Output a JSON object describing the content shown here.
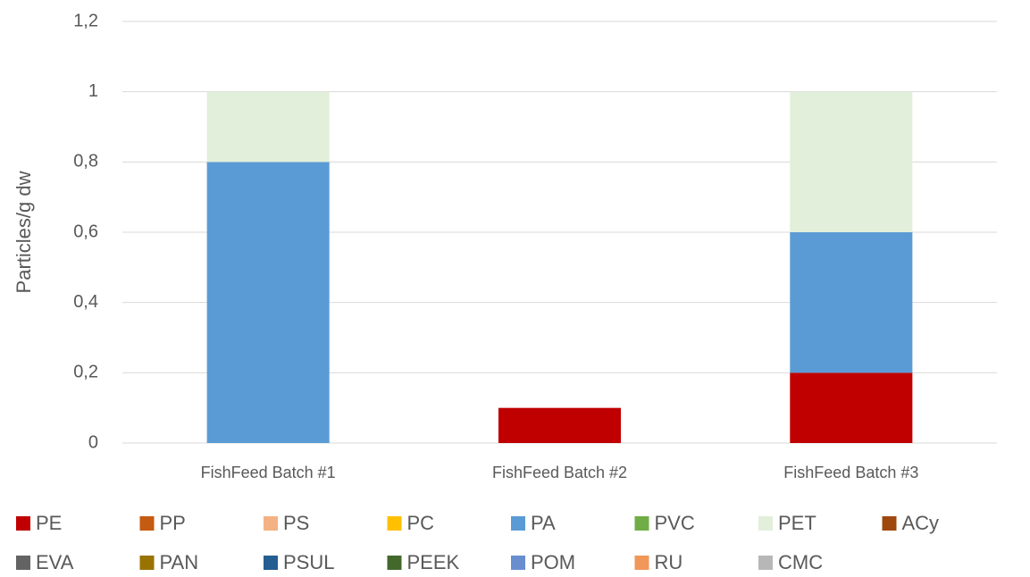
{
  "chart_data": {
    "type": "stacked_bar",
    "y_label": "Particles/g dw",
    "categories": [
      "FishFeed Batch #1",
      "FishFeed Batch #2",
      "FishFeed Batch #3"
    ],
    "series": [
      {
        "name": "PE",
        "color": "#c00000",
        "values": [
          0,
          0.1,
          0.2
        ]
      },
      {
        "name": "PP",
        "color": "#c55a11",
        "values": [
          0,
          0,
          0
        ]
      },
      {
        "name": "PS",
        "color": "#f4b183",
        "values": [
          0,
          0,
          0
        ]
      },
      {
        "name": "PC",
        "color": "#ffc000",
        "values": [
          0,
          0,
          0
        ]
      },
      {
        "name": "PA",
        "color": "#5b9bd5",
        "values": [
          0.8,
          0,
          0.4
        ]
      },
      {
        "name": "PVC",
        "color": "#70ad47",
        "values": [
          0,
          0,
          0
        ]
      },
      {
        "name": "PET",
        "color": "#e2efda",
        "values": [
          0.2,
          0,
          0.4
        ]
      },
      {
        "name": "ACy",
        "color": "#9e480e",
        "values": [
          0,
          0,
          0
        ]
      },
      {
        "name": "EVA",
        "color": "#636363",
        "values": [
          0,
          0,
          0
        ]
      },
      {
        "name": "PAN",
        "color": "#997300",
        "values": [
          0,
          0,
          0
        ]
      },
      {
        "name": "PSUL",
        "color": "#255e91",
        "values": [
          0,
          0,
          0
        ]
      },
      {
        "name": "PEEK",
        "color": "#43682b",
        "values": [
          0,
          0,
          0
        ]
      },
      {
        "name": "POM",
        "color": "#698ed0",
        "values": [
          0,
          0,
          0
        ]
      },
      {
        "name": "RU",
        "color": "#f1975a",
        "values": [
          0,
          0,
          0
        ]
      },
      {
        "name": "CMC",
        "color": "#b7b7b7",
        "values": [
          0,
          0,
          0
        ]
      }
    ],
    "ylim": [
      0,
      1.2
    ],
    "yticks": [
      0,
      {
        "value": 0.2,
        "label": "0,2"
      },
      {
        "value": 0.4,
        "label": "0,4"
      },
      {
        "value": 0.6,
        "label": "0,6"
      },
      {
        "value": 0.8,
        "label": "0,8"
      },
      1,
      {
        "value": 1.2,
        "label": "1,2"
      }
    ],
    "grid": true,
    "legend": "bottom"
  }
}
